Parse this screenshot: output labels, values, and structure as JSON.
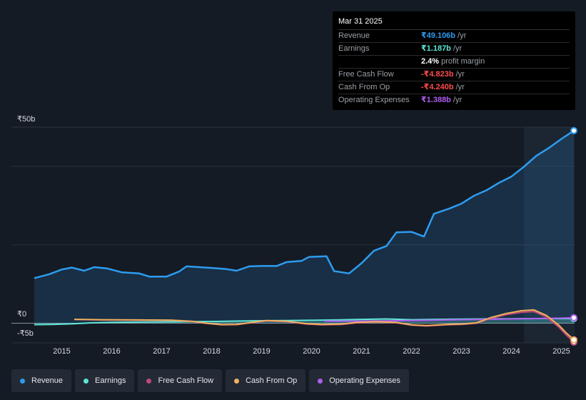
{
  "tooltip": {
    "date": "Mar 31 2025",
    "rows": [
      {
        "label": "Revenue",
        "value": "₹49.106b",
        "unit": "/yr",
        "color": "#2d9cf0"
      },
      {
        "label": "Earnings",
        "value": "₹1.187b",
        "unit": "/yr",
        "color": "#5ee6d6"
      },
      {
        "label": "",
        "value": "2.4%",
        "unit": "profit margin",
        "color": "#ffffff"
      },
      {
        "label": "Free Cash Flow",
        "value": "-₹4.823b",
        "unit": "/yr",
        "color": "#ff4d4d"
      },
      {
        "label": "Cash From Op",
        "value": "-₹4.240b",
        "unit": "/yr",
        "color": "#ff4d4d"
      },
      {
        "label": "Operating Expenses",
        "value": "₹1.388b",
        "unit": "/yr",
        "color": "#b05ef0"
      }
    ]
  },
  "chart_data": {
    "type": "line",
    "y_tick_labels": [
      "₹50b",
      "₹0",
      "-₹5b"
    ],
    "x_tick_labels": [
      "2015",
      "2016",
      "2017",
      "2018",
      "2019",
      "2020",
      "2021",
      "2022",
      "2023",
      "2024",
      "2025"
    ],
    "ylim": [
      -5,
      50
    ],
    "xlim": [
      2014.45,
      2025.25
    ],
    "highlight_range": [
      2024.25,
      2025.25
    ],
    "series": [
      {
        "name": "Revenue",
        "color": "#2d9cf0",
        "area": true,
        "points": [
          [
            2014.45,
            11.5
          ],
          [
            2014.75,
            12.5
          ],
          [
            2015.0,
            13.7
          ],
          [
            2015.2,
            14.2
          ],
          [
            2015.45,
            13.4
          ],
          [
            2015.65,
            14.3
          ],
          [
            2015.9,
            14.0
          ],
          [
            2016.2,
            13.0
          ],
          [
            2016.55,
            12.7
          ],
          [
            2016.75,
            11.9
          ],
          [
            2017.1,
            11.9
          ],
          [
            2017.35,
            13.2
          ],
          [
            2017.5,
            14.5
          ],
          [
            2017.75,
            14.3
          ],
          [
            2018.0,
            14.1
          ],
          [
            2018.3,
            13.8
          ],
          [
            2018.5,
            13.4
          ],
          [
            2018.75,
            14.5
          ],
          [
            2019.0,
            14.6
          ],
          [
            2019.3,
            14.6
          ],
          [
            2019.5,
            15.6
          ],
          [
            2019.8,
            15.9
          ],
          [
            2019.95,
            16.9
          ],
          [
            2020.3,
            17.1
          ],
          [
            2020.45,
            13.3
          ],
          [
            2020.75,
            12.7
          ],
          [
            2021.0,
            15.3
          ],
          [
            2021.25,
            18.5
          ],
          [
            2021.5,
            19.7
          ],
          [
            2021.7,
            23.2
          ],
          [
            2022.0,
            23.3
          ],
          [
            2022.25,
            22.1
          ],
          [
            2022.45,
            27.9
          ],
          [
            2022.75,
            29.2
          ],
          [
            2023.0,
            30.5
          ],
          [
            2023.25,
            32.5
          ],
          [
            2023.5,
            33.9
          ],
          [
            2023.75,
            35.8
          ],
          [
            2024.0,
            37.4
          ],
          [
            2024.25,
            39.9
          ],
          [
            2024.5,
            42.7
          ],
          [
            2024.75,
            44.7
          ],
          [
            2025.0,
            47.0
          ],
          [
            2025.25,
            49.106
          ]
        ]
      },
      {
        "name": "Earnings",
        "color": "#5ee6d6",
        "area": true,
        "points": [
          [
            2014.45,
            -0.35
          ],
          [
            2014.8,
            -0.3
          ],
          [
            2015.2,
            -0.15
          ],
          [
            2015.6,
            0.1
          ],
          [
            2016.0,
            0.25
          ],
          [
            2016.5,
            0.3
          ],
          [
            2017.0,
            0.35
          ],
          [
            2017.5,
            0.4
          ],
          [
            2018.0,
            0.45
          ],
          [
            2018.5,
            0.55
          ],
          [
            2019.0,
            0.65
          ],
          [
            2019.5,
            0.7
          ],
          [
            2020.0,
            0.75
          ],
          [
            2020.5,
            0.85
          ],
          [
            2021.0,
            1.0
          ],
          [
            2021.5,
            1.1
          ],
          [
            2022.0,
            0.9
          ],
          [
            2022.5,
            1.0
          ],
          [
            2023.0,
            1.05
          ],
          [
            2023.5,
            1.1
          ],
          [
            2024.0,
            1.15
          ],
          [
            2024.5,
            1.2
          ],
          [
            2025.0,
            1.2
          ],
          [
            2025.25,
            1.187
          ]
        ]
      },
      {
        "name": "Cash From Op",
        "color": "#f0b060",
        "area": false,
        "points": [
          [
            2015.25,
            1.0
          ],
          [
            2015.8,
            0.9
          ],
          [
            2016.5,
            0.85
          ],
          [
            2017.2,
            0.8
          ],
          [
            2017.6,
            0.5
          ],
          [
            2017.9,
            0.0
          ],
          [
            2018.2,
            -0.35
          ],
          [
            2018.5,
            -0.3
          ],
          [
            2018.8,
            0.2
          ],
          [
            2019.1,
            0.7
          ],
          [
            2019.5,
            0.5
          ],
          [
            2019.9,
            -0.1
          ],
          [
            2020.2,
            -0.3
          ],
          [
            2020.6,
            -0.2
          ],
          [
            2020.9,
            0.2
          ],
          [
            2021.3,
            0.4
          ],
          [
            2021.7,
            0.2
          ],
          [
            2022.0,
            -0.4
          ],
          [
            2022.3,
            -0.6
          ],
          [
            2022.7,
            -0.3
          ],
          [
            2023.0,
            -0.2
          ],
          [
            2023.3,
            0.1
          ],
          [
            2023.6,
            1.5
          ],
          [
            2023.9,
            2.5
          ],
          [
            2024.2,
            3.2
          ],
          [
            2024.45,
            3.4
          ],
          [
            2024.7,
            2.0
          ],
          [
            2024.95,
            -0.5
          ],
          [
            2025.1,
            -2.5
          ],
          [
            2025.25,
            -4.24
          ]
        ]
      },
      {
        "name": "Free Cash Flow",
        "color": "#c04a78",
        "area": false,
        "points": [
          [
            2015.25,
            0.95
          ],
          [
            2015.8,
            0.85
          ],
          [
            2016.5,
            0.8
          ],
          [
            2017.2,
            0.75
          ],
          [
            2017.6,
            0.45
          ],
          [
            2017.9,
            -0.05
          ],
          [
            2018.2,
            -0.4
          ],
          [
            2018.5,
            -0.35
          ],
          [
            2018.8,
            0.15
          ],
          [
            2019.1,
            0.6
          ],
          [
            2019.5,
            0.4
          ],
          [
            2019.9,
            -0.2
          ],
          [
            2020.2,
            -0.4
          ],
          [
            2020.6,
            -0.3
          ],
          [
            2020.9,
            0.1
          ],
          [
            2021.3,
            0.3
          ],
          [
            2021.7,
            0.1
          ],
          [
            2022.0,
            -0.5
          ],
          [
            2022.3,
            -0.7
          ],
          [
            2022.7,
            -0.4
          ],
          [
            2023.0,
            -0.3
          ],
          [
            2023.3,
            0.0
          ],
          [
            2023.6,
            1.3
          ],
          [
            2023.9,
            2.2
          ],
          [
            2024.2,
            2.8
          ],
          [
            2024.45,
            3.0
          ],
          [
            2024.7,
            1.6
          ],
          [
            2024.95,
            -1.0
          ],
          [
            2025.1,
            -3.0
          ],
          [
            2025.25,
            -4.823
          ]
        ]
      },
      {
        "name": "Operating Expenses",
        "color": "#b05ef0",
        "area": false,
        "points": [
          [
            2020.25,
            0.55
          ],
          [
            2020.6,
            0.5
          ],
          [
            2021.0,
            0.55
          ],
          [
            2021.5,
            0.6
          ],
          [
            2022.0,
            0.7
          ],
          [
            2022.5,
            0.8
          ],
          [
            2023.0,
            0.9
          ],
          [
            2023.5,
            1.0
          ],
          [
            2024.0,
            1.1
          ],
          [
            2024.5,
            1.2
          ],
          [
            2025.0,
            1.3
          ],
          [
            2025.25,
            1.388
          ]
        ]
      }
    ]
  },
  "legend": {
    "items": [
      {
        "label": "Revenue",
        "color": "#2d9cf0"
      },
      {
        "label": "Earnings",
        "color": "#5ee6d6"
      },
      {
        "label": "Free Cash Flow",
        "color": "#c04a78"
      },
      {
        "label": "Cash From Op",
        "color": "#f0b060"
      },
      {
        "label": "Operating Expenses",
        "color": "#b05ef0"
      }
    ]
  }
}
